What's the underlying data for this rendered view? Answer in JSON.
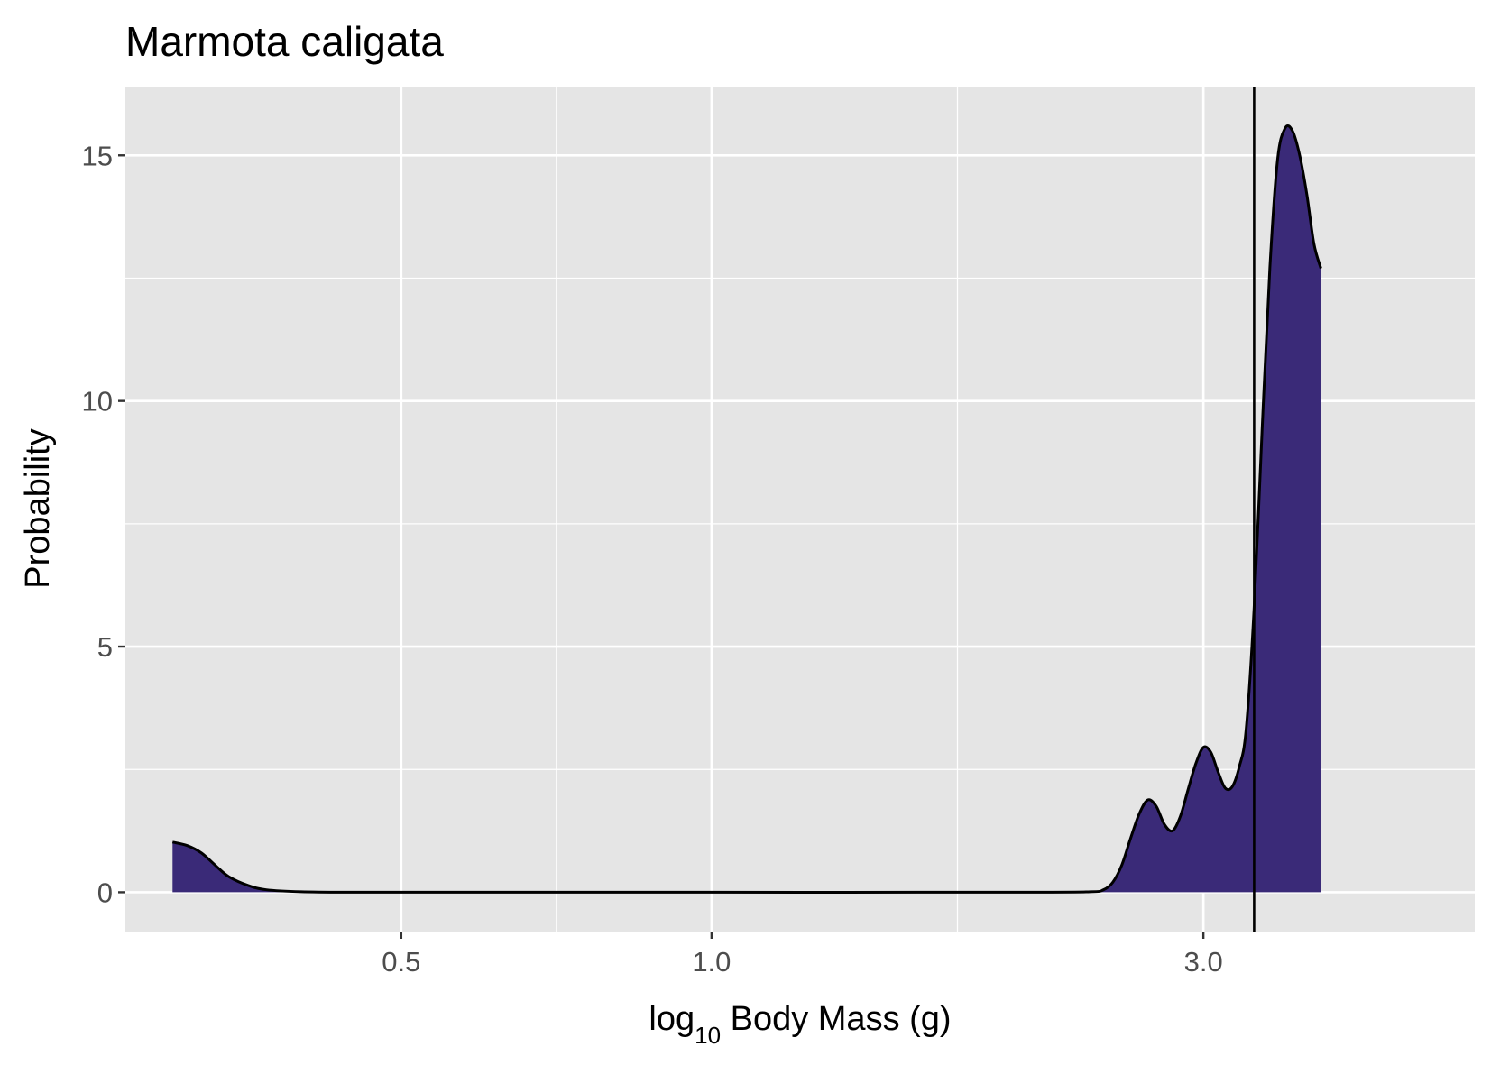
{
  "chart_data": {
    "type": "area",
    "title": "Marmota caligata",
    "xlabel": {
      "prefix": "log",
      "subscript": "10",
      "suffix": " Body Mass (g)"
    },
    "ylabel": "Probability",
    "x_scale": "log10",
    "xlim": [
      0.27,
      5.5
    ],
    "ylim": [
      -0.8,
      16.4
    ],
    "x_ticks": [
      {
        "value": 0.5,
        "label": "0.5"
      },
      {
        "value": 1.0,
        "label": "1.0"
      },
      {
        "value": 3.0,
        "label": "3.0"
      }
    ],
    "x_minor_ticks": [
      0.707,
      1.732
    ],
    "y_ticks": [
      {
        "value": 0,
        "label": "0"
      },
      {
        "value": 5,
        "label": "5"
      },
      {
        "value": 10,
        "label": "10"
      },
      {
        "value": 15,
        "label": "15"
      }
    ],
    "y_minor_ticks": [
      2.5,
      7.5,
      12.5
    ],
    "grid": true,
    "legend": "none",
    "reference_line_x": 3.36,
    "series": [
      {
        "x": [
          0.3,
          0.31,
          0.32,
          0.33,
          0.34,
          0.355,
          0.37,
          0.4,
          0.45,
          0.6,
          1.0,
          2.0,
          2.33,
          2.4,
          2.45,
          2.5,
          2.55,
          2.6,
          2.65,
          2.7,
          2.75,
          2.8,
          2.85,
          2.9,
          2.95,
          3.0,
          3.05,
          3.1,
          3.15,
          3.2,
          3.25,
          3.3,
          3.36,
          3.42,
          3.48,
          3.54,
          3.6,
          3.66,
          3.72,
          3.78,
          3.84,
          3.9
        ],
        "y": [
          1.02,
          0.95,
          0.8,
          0.55,
          0.32,
          0.14,
          0.05,
          0.01,
          0.0,
          0.0,
          0.0,
          0.0,
          0.01,
          0.05,
          0.2,
          0.55,
          1.1,
          1.6,
          1.88,
          1.75,
          1.38,
          1.25,
          1.55,
          2.1,
          2.62,
          2.95,
          2.85,
          2.45,
          2.12,
          2.15,
          2.55,
          3.3,
          5.8,
          9.4,
          12.7,
          14.9,
          15.55,
          15.5,
          15.0,
          14.2,
          13.2,
          12.7
        ]
      }
    ],
    "colors": {
      "fill": "#3a2a78",
      "line": "#000000",
      "panel": "#e5e5e5",
      "grid": "#ffffff"
    }
  }
}
